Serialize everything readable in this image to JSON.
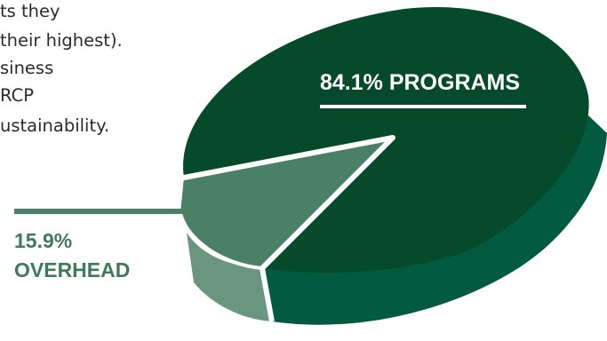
{
  "intro_text": {
    "lines": [
      "ts they",
      "their highest).",
      "siness",
      "RCP",
      "ustainability."
    ]
  },
  "chart_data": {
    "type": "pie",
    "style": "3d",
    "title": "",
    "series": [
      {
        "name": "PROGRAMS",
        "value": 84.1,
        "label": "84.1% PROGRAMS",
        "top_color": "#054a2b",
        "side_color": "#025b40"
      },
      {
        "name": "OVERHEAD",
        "value": 15.9,
        "label_lines": [
          "15.9%",
          "OVERHEAD"
        ],
        "top_color": "#4a8166",
        "side_color": "#6a9680"
      }
    ],
    "legend": "none"
  }
}
